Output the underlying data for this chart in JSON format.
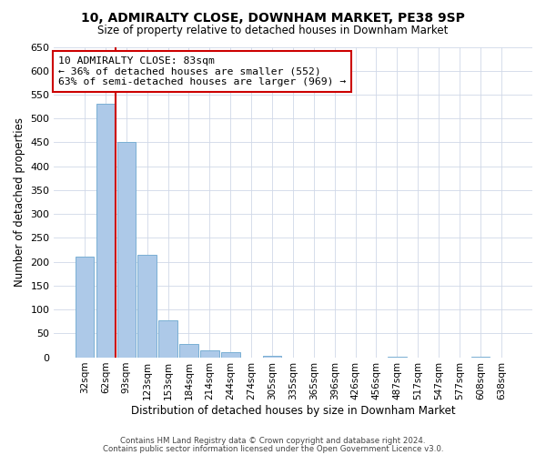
{
  "title": "10, ADMIRALTY CLOSE, DOWNHAM MARKET, PE38 9SP",
  "subtitle": "Size of property relative to detached houses in Downham Market",
  "xlabel": "Distribution of detached houses by size in Downham Market",
  "ylabel": "Number of detached properties",
  "footer_line1": "Contains HM Land Registry data © Crown copyright and database right 2024.",
  "footer_line2": "Contains public sector information licensed under the Open Government Licence v3.0.",
  "bin_labels": [
    "32sqm",
    "62sqm",
    "93sqm",
    "123sqm",
    "153sqm",
    "184sqm",
    "214sqm",
    "244sqm",
    "274sqm",
    "305sqm",
    "335sqm",
    "365sqm",
    "396sqm",
    "426sqm",
    "456sqm",
    "487sqm",
    "517sqm",
    "547sqm",
    "577sqm",
    "608sqm",
    "638sqm"
  ],
  "bar_heights": [
    210,
    530,
    450,
    215,
    78,
    28,
    15,
    10,
    0,
    3,
    0,
    0,
    0,
    0,
    0,
    2,
    0,
    0,
    0,
    2,
    0
  ],
  "bar_color": "#adc9e8",
  "bar_edge_color": "#7aafd4",
  "marker_line_idx": 2,
  "marker_line_color": "#cc0000",
  "ylim": [
    0,
    650
  ],
  "yticks": [
    0,
    50,
    100,
    150,
    200,
    250,
    300,
    350,
    400,
    450,
    500,
    550,
    600,
    650
  ],
  "annotation_title": "10 ADMIRALTY CLOSE: 83sqm",
  "annotation_line1": "← 36% of detached houses are smaller (552)",
  "annotation_line2": "63% of semi-detached houses are larger (969) →",
  "annotation_box_color": "#cc0000",
  "bg_color": "#ffffff",
  "grid_color": "#d0d8e8"
}
